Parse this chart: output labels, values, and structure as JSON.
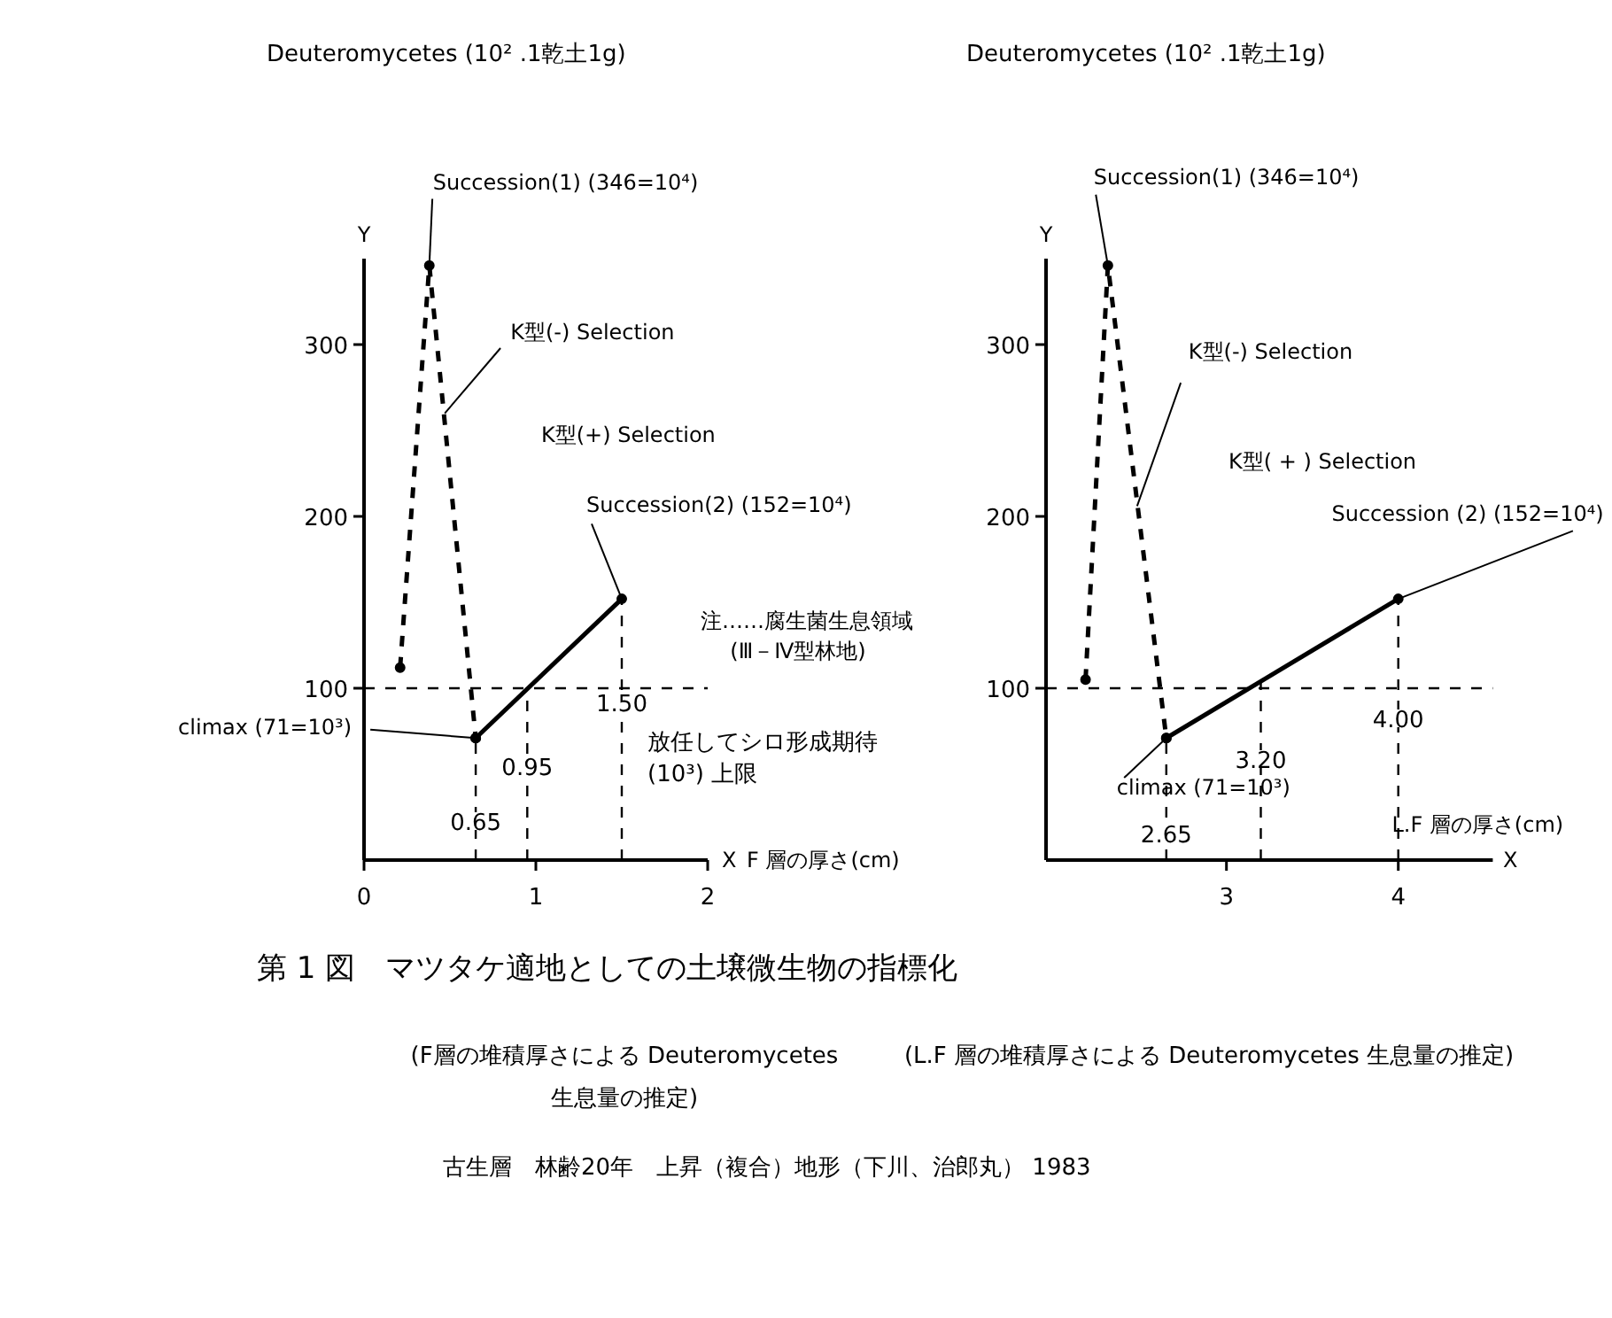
{
  "chart_data": [
    {
      "type": "line",
      "title": "第 1 図　マツタケ適地としての土壌微生物の指標化",
      "subtitle": "(F層の堆積厚さによる Deuteromycetes 生息量の推定)",
      "xlabel": "F 層の厚さ(cm)",
      "ylabel": "Deuteromycetes (10² .1乾土1g)",
      "xlim": [
        0,
        2
      ],
      "xticks": [
        0,
        1,
        2
      ],
      "ylim": [
        0,
        350
      ],
      "yticks": [
        100,
        200,
        300
      ],
      "marker": "circle",
      "series": [
        {
          "color": "#000000",
          "line_style": "dashed",
          "x": [
            0.21,
            0.38,
            0.65
          ],
          "values": [
            112,
            346,
            71
          ]
        },
        {
          "color": "#000000",
          "line_style": "solid",
          "x": [
            0.65,
            1.5
          ],
          "values": [
            71,
            152
          ]
        }
      ],
      "ref_lines": [
        {
          "axis": "y",
          "value": 100,
          "label": "放任してシロ形成期待 (10³) 上限",
          "line_style": "dashed"
        },
        {
          "axis": "x",
          "value": 0.65,
          "label": "0.65",
          "line_style": "dashed"
        },
        {
          "axis": "x",
          "value": 0.95,
          "label": "0.95",
          "line_style": "dashed"
        },
        {
          "axis": "x",
          "value": 1.5,
          "label": "1.50",
          "line_style": "dashed"
        }
      ],
      "annotations": [
        {
          "text": "Succession(1) (346=10⁴)",
          "x": 0.38,
          "y": 346
        },
        {
          "text": "K型(-) Selection",
          "x": 0.47,
          "y": 260
        },
        {
          "text": "Succession(2) (152=10⁴)",
          "x": 1.5,
          "y": 152
        },
        {
          "text": "climax (71=10³)",
          "x": 0.65,
          "y": 71
        },
        "K型(+) Selection",
        "Y",
        "X",
        "注……腐生菌生息領域",
        "(Ⅲ－Ⅳ型林地)"
      ]
    },
    {
      "type": "line",
      "subtitle": "(L.F 層の堆積厚さによる Deuteromycetes 生息量の推定)",
      "xlabel": "L.F 層の厚さ(cm)",
      "ylabel": "Deuteromycetes (10² .1乾土1g)",
      "xlim": [
        1.95,
        4.55
      ],
      "xticks": [
        3,
        4
      ],
      "ylim": [
        0,
        350
      ],
      "yticks": [
        100,
        200,
        300
      ],
      "marker": "circle",
      "series": [
        {
          "color": "#000000",
          "line_style": "dashed",
          "x": [
            2.18,
            2.31,
            2.65
          ],
          "values": [
            105,
            346,
            71
          ]
        },
        {
          "color": "#000000",
          "line_style": "solid",
          "x": [
            2.65,
            4.0
          ],
          "values": [
            71,
            152
          ]
        }
      ],
      "ref_lines": [
        {
          "axis": "y",
          "value": 100,
          "line_style": "dashed"
        },
        {
          "axis": "x",
          "value": 2.65,
          "label": "2.65",
          "line_style": "dashed"
        },
        {
          "axis": "x",
          "value": 3.2,
          "label": "3.20",
          "line_style": "dashed"
        },
        {
          "axis": "x",
          "value": 4.0,
          "label": "4.00",
          "line_style": "dashed"
        }
      ],
      "annotations": [
        {
          "text": "Succession(1) (346=10⁴)",
          "x": 2.31,
          "y": 346
        },
        {
          "text": "K型(-) Selection",
          "x": 2.48,
          "y": 206
        },
        {
          "text": "Succession (2) (152=10⁴)",
          "x": 4.0,
          "y": 152
        },
        {
          "text": "climax (71=10³)",
          "x": 2.65,
          "y": 71
        },
        "K型( + ) Selection",
        "Y",
        "X",
        "古生層　林齢20年　上昇（複合）地形（下川、治郎丸） 1983"
      ]
    }
  ]
}
